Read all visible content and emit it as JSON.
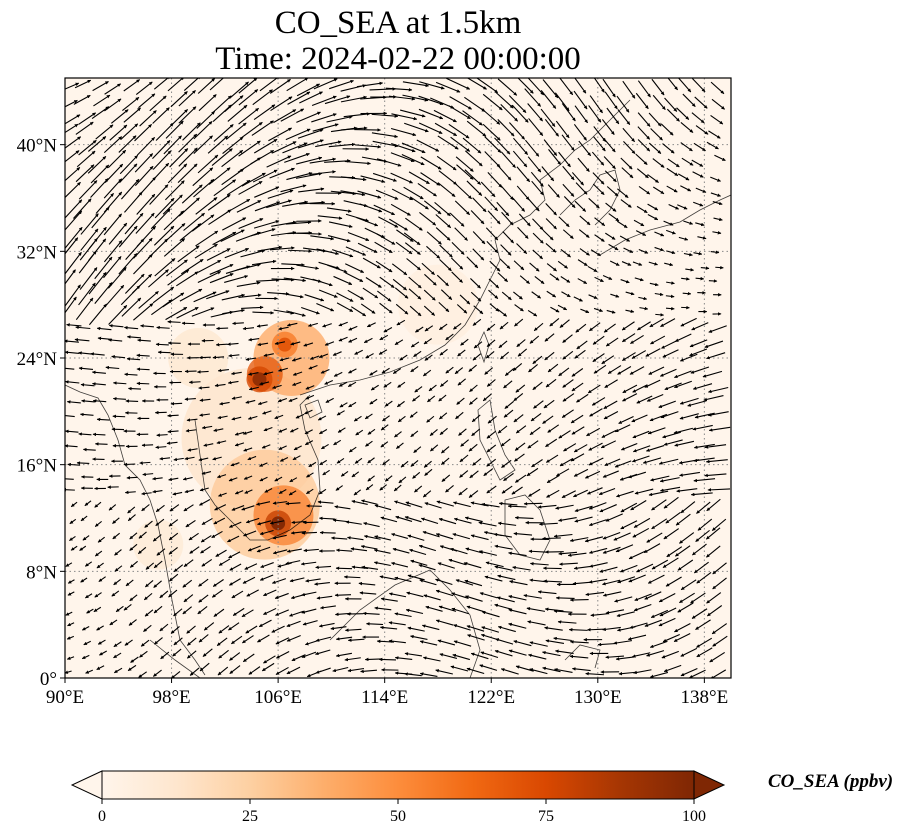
{
  "header": {
    "title_line1": "CO_SEA at 1.5km",
    "title_line2": "Time: 2024-02-22 00:00:00"
  },
  "map": {
    "extent": {
      "lon": [
        90,
        140
      ],
      "lat": [
        0,
        45
      ]
    },
    "lon_ticks": [
      {
        "value": 90,
        "label": "90°E"
      },
      {
        "value": 98,
        "label": "98°E"
      },
      {
        "value": 106,
        "label": "106°E"
      },
      {
        "value": 114,
        "label": "114°E"
      },
      {
        "value": 122,
        "label": "122°E"
      },
      {
        "value": 130,
        "label": "130°E"
      },
      {
        "value": 138,
        "label": "138°E"
      }
    ],
    "lat_ticks": [
      {
        "value": 0,
        "label": "0°"
      },
      {
        "value": 8,
        "label": "8°N"
      },
      {
        "value": 16,
        "label": "16°N"
      },
      {
        "value": 24,
        "label": "24°N"
      },
      {
        "value": 32,
        "label": "32°N"
      },
      {
        "value": 40,
        "label": "40°N"
      }
    ],
    "gridlines": true,
    "background_color": "#fff5eb",
    "hotspots": [
      {
        "lon": 106.0,
        "lat": 11.6,
        "value": 100
      },
      {
        "lon": 104.6,
        "lat": 22.4,
        "value": 95
      },
      {
        "lon": 106.5,
        "lat": 25.0,
        "value": 70
      }
    ]
  },
  "colorbar": {
    "label": "CO_SEA (ppbv)",
    "range": [
      0,
      100
    ],
    "extend": "both",
    "colors": [
      "#fff5eb",
      "#fee6ce",
      "#fdd0a2",
      "#fdae6b",
      "#fd8d3c",
      "#f16913",
      "#d94801",
      "#a63603",
      "#7f2704"
    ],
    "ticks": [
      {
        "value": 0,
        "label": "0"
      },
      {
        "value": 25,
        "label": "25"
      },
      {
        "value": 50,
        "label": "50"
      },
      {
        "value": 75,
        "label": "75"
      },
      {
        "value": 100,
        "label": "100"
      }
    ]
  }
}
